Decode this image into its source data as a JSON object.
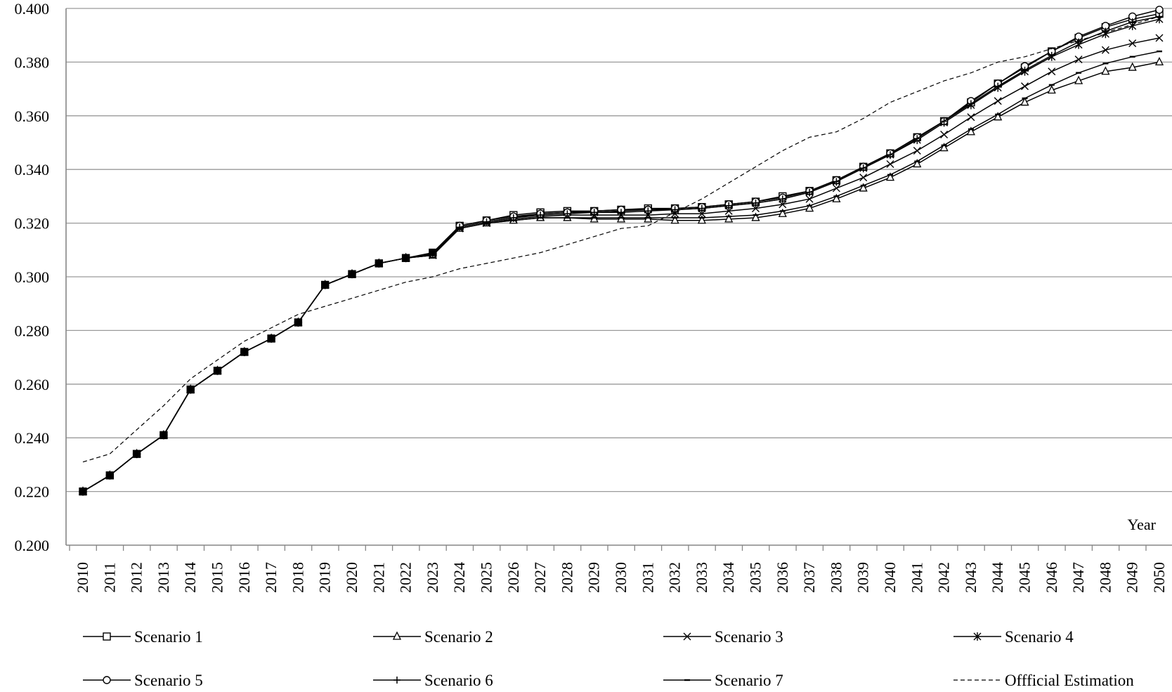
{
  "chart_data": {
    "type": "line",
    "title": "",
    "xlabel": "Year",
    "ylabel": "",
    "ylim": [
      0.2,
      0.4
    ],
    "yticks": [
      "0.200",
      "0.220",
      "0.240",
      "0.260",
      "0.280",
      "0.300",
      "0.320",
      "0.340",
      "0.360",
      "0.380",
      "0.400"
    ],
    "grid": true,
    "legend_position": "bottom",
    "x": [
      2010,
      2011,
      2012,
      2013,
      2014,
      2015,
      2016,
      2017,
      2018,
      2019,
      2020,
      2021,
      2022,
      2023,
      2024,
      2025,
      2026,
      2027,
      2028,
      2029,
      2030,
      2031,
      2032,
      2033,
      2034,
      2035,
      2036,
      2037,
      2038,
      2039,
      2040,
      2041,
      2042,
      2043,
      2044,
      2045,
      2046,
      2047,
      2048,
      2049,
      2050
    ],
    "series": [
      {
        "name": "Scenario 1",
        "marker": "square",
        "values": [
          0.22,
          0.226,
          0.234,
          0.241,
          0.258,
          0.265,
          0.272,
          0.277,
          0.283,
          0.297,
          0.301,
          0.305,
          0.307,
          0.309,
          0.319,
          0.321,
          0.323,
          0.324,
          0.3245,
          0.3245,
          0.325,
          0.3255,
          0.3255,
          0.326,
          0.327,
          0.328,
          0.33,
          0.332,
          0.336,
          0.341,
          0.346,
          0.352,
          0.358,
          0.365,
          0.372,
          0.378,
          0.384,
          0.389,
          0.393,
          0.396,
          0.398
        ]
      },
      {
        "name": "Scenario 2",
        "marker": "triangle",
        "values": [
          0.22,
          0.226,
          0.234,
          0.241,
          0.258,
          0.265,
          0.272,
          0.277,
          0.283,
          0.297,
          0.301,
          0.305,
          0.307,
          0.308,
          0.318,
          0.32,
          0.321,
          0.322,
          0.322,
          0.3215,
          0.3215,
          0.3215,
          0.321,
          0.321,
          0.3215,
          0.322,
          0.3235,
          0.3255,
          0.329,
          0.333,
          0.337,
          0.342,
          0.348,
          0.354,
          0.3595,
          0.365,
          0.3695,
          0.373,
          0.3765,
          0.378,
          0.38
        ]
      },
      {
        "name": "Scenario 3",
        "marker": "x",
        "values": [
          0.22,
          0.226,
          0.234,
          0.241,
          0.258,
          0.265,
          0.272,
          0.277,
          0.283,
          0.297,
          0.301,
          0.305,
          0.307,
          0.308,
          0.318,
          0.32,
          0.3215,
          0.3225,
          0.323,
          0.323,
          0.323,
          0.323,
          0.3235,
          0.3235,
          0.3245,
          0.3255,
          0.327,
          0.329,
          0.333,
          0.337,
          0.342,
          0.347,
          0.353,
          0.3595,
          0.3655,
          0.371,
          0.3765,
          0.381,
          0.3845,
          0.387,
          0.389
        ]
      },
      {
        "name": "Scenario 4",
        "marker": "asterisk",
        "values": [
          0.22,
          0.226,
          0.234,
          0.241,
          0.258,
          0.265,
          0.272,
          0.277,
          0.283,
          0.297,
          0.301,
          0.305,
          0.307,
          0.3085,
          0.3185,
          0.3205,
          0.322,
          0.3235,
          0.324,
          0.324,
          0.3245,
          0.325,
          0.325,
          0.3255,
          0.3265,
          0.3275,
          0.329,
          0.3315,
          0.3355,
          0.3405,
          0.3455,
          0.351,
          0.3575,
          0.364,
          0.3705,
          0.3765,
          0.382,
          0.3865,
          0.3905,
          0.3935,
          0.396
        ]
      },
      {
        "name": "Scenario 5",
        "marker": "circle",
        "values": [
          0.22,
          0.226,
          0.234,
          0.241,
          0.258,
          0.265,
          0.272,
          0.277,
          0.283,
          0.297,
          0.301,
          0.305,
          0.307,
          0.3085,
          0.319,
          0.321,
          0.3225,
          0.3235,
          0.324,
          0.3245,
          0.325,
          0.325,
          0.3255,
          0.326,
          0.327,
          0.328,
          0.3295,
          0.332,
          0.336,
          0.341,
          0.346,
          0.352,
          0.358,
          0.3655,
          0.372,
          0.3785,
          0.384,
          0.3895,
          0.3935,
          0.397,
          0.3995
        ]
      },
      {
        "name": "Scenario 6",
        "marker": "plus",
        "values": [
          0.22,
          0.226,
          0.234,
          0.241,
          0.258,
          0.265,
          0.272,
          0.277,
          0.283,
          0.297,
          0.301,
          0.305,
          0.307,
          0.3085,
          0.3185,
          0.3205,
          0.322,
          0.323,
          0.3235,
          0.324,
          0.324,
          0.3245,
          0.325,
          0.3255,
          0.3265,
          0.3275,
          0.329,
          0.3315,
          0.3355,
          0.3405,
          0.3455,
          0.3515,
          0.358,
          0.3645,
          0.371,
          0.377,
          0.3825,
          0.3875,
          0.3915,
          0.395,
          0.397
        ]
      },
      {
        "name": "Scenario 7",
        "marker": "dash",
        "values": [
          0.22,
          0.226,
          0.234,
          0.241,
          0.258,
          0.265,
          0.272,
          0.277,
          0.283,
          0.297,
          0.301,
          0.305,
          0.307,
          0.308,
          0.318,
          0.32,
          0.321,
          0.322,
          0.322,
          0.322,
          0.322,
          0.322,
          0.322,
          0.322,
          0.3225,
          0.323,
          0.3245,
          0.3265,
          0.33,
          0.334,
          0.338,
          0.343,
          0.349,
          0.355,
          0.3605,
          0.3665,
          0.3715,
          0.376,
          0.3795,
          0.382,
          0.384
        ]
      },
      {
        "name": "Offficial Estimation",
        "marker": "none",
        "dashed": true,
        "values": [
          0.231,
          0.234,
          0.243,
          0.252,
          0.262,
          0.269,
          0.276,
          0.281,
          0.286,
          0.289,
          0.292,
          0.295,
          0.298,
          0.3,
          0.303,
          0.305,
          0.307,
          0.309,
          0.312,
          0.315,
          0.318,
          0.319,
          0.324,
          0.329,
          0.335,
          0.341,
          0.347,
          0.352,
          0.354,
          0.359,
          0.365,
          0.369,
          0.373,
          0.376,
          0.38,
          0.382,
          0.385,
          0.388,
          0.391,
          0.394,
          0.397
        ]
      }
    ]
  }
}
